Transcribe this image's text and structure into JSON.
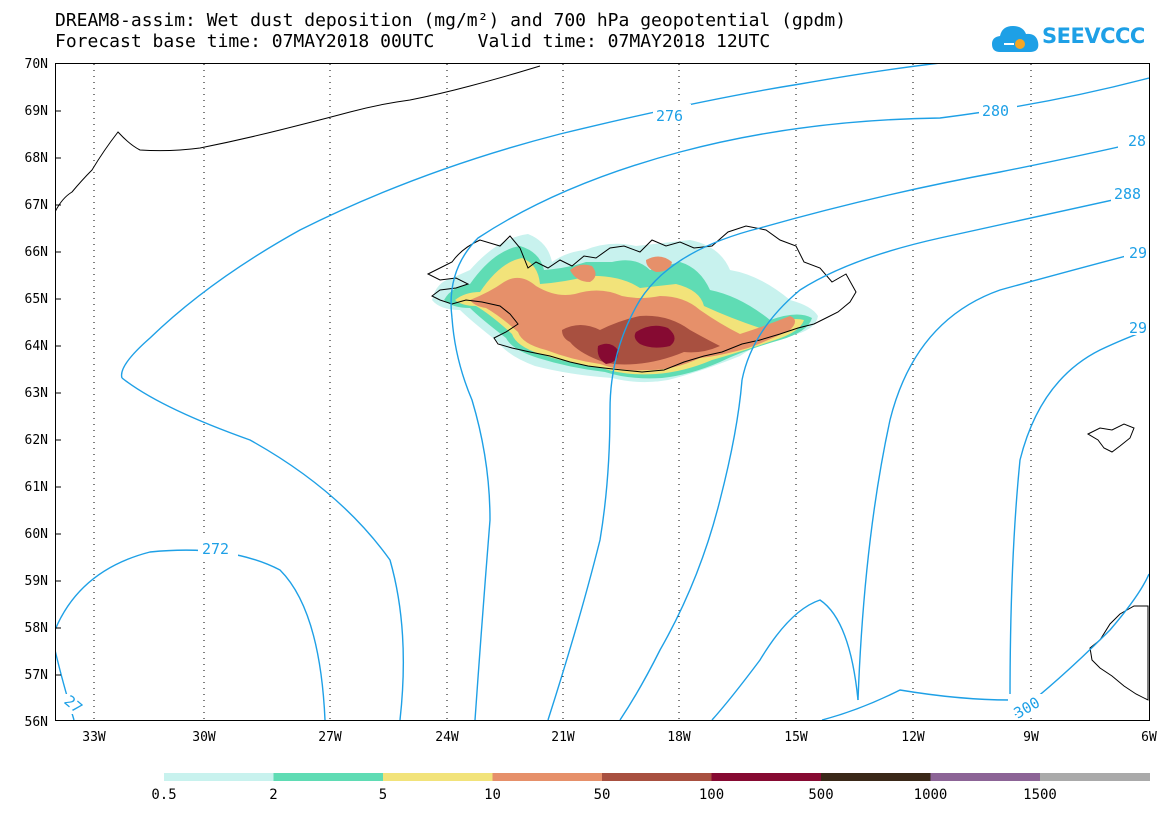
{
  "title_line1": "DREAM8-assim: Wet dust deposition (mg/m²) and 700 hPa geopotential (gpdm)",
  "title_line2": "Forecast base time: 07MAY2018 00UTC    Valid time: 07MAY2018 12UTC",
  "logo_text": "SEEVCCC",
  "lat_labels": [
    "70N",
    "69N",
    "68N",
    "67N",
    "66N",
    "65N",
    "64N",
    "63N",
    "62N",
    "61N",
    "60N",
    "59N",
    "58N",
    "57N",
    "56N"
  ],
  "lon_labels": [
    "33W",
    "30W",
    "27W",
    "24W",
    "21W",
    "18W",
    "15W",
    "12W",
    "9W",
    "6W"
  ],
  "contour_labels": [
    "276",
    "280",
    "28",
    "288",
    "29",
    "29",
    "272",
    "27",
    "300"
  ],
  "colorbar": {
    "colors": [
      "#c8f2ee",
      "#5fdcb4",
      "#f2e37a",
      "#e6906a",
      "#a85040",
      "#860a32",
      "#3a2818",
      "#8c6496",
      "#aaaaaa"
    ],
    "labels": [
      "0.5",
      "2",
      "5",
      "10",
      "50",
      "100",
      "500",
      "1000",
      "1500"
    ]
  },
  "colors": {
    "contour": "#1ea0e6",
    "coast": "#000000"
  }
}
